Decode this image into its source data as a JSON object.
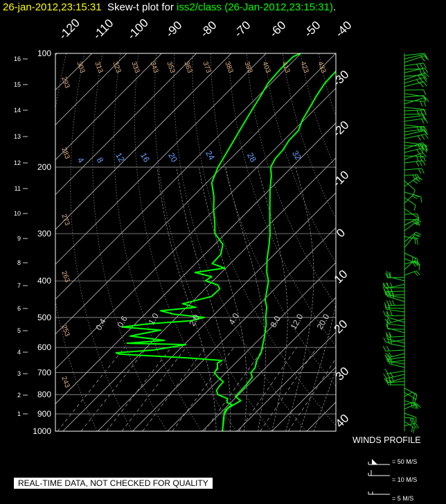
{
  "title": {
    "timestamp": "26-jan-2012,23:15:31",
    "prefix": "Skew-t plot for",
    "source": "iss2/class (26-Jan-2012,23:15:31)",
    "suffix": "."
  },
  "note": "REAL-TIME DATA, NOT CHECKED FOR QUALITY",
  "winds": {
    "title": "WINDS PROFILE",
    "legend": [
      "= 50 M/S",
      "= 10 M/S",
      "= 5 M/S"
    ]
  },
  "colors": {
    "sounding": "#00ff00",
    "timestamp": "#ffff00",
    "text": "#ffffff",
    "background": "#000000"
  },
  "chart_data": {
    "type": "line",
    "pressure_levels": [
      "100",
      "200",
      "300",
      "400",
      "500",
      "600",
      "700",
      "800",
      "900",
      "1000"
    ],
    "height_km": [
      "1",
      "2",
      "3",
      "4",
      "5",
      "6",
      "7",
      "8",
      "9",
      "10",
      "11",
      "12",
      "13",
      "14",
      "15",
      "16"
    ],
    "isotherms_top": [
      "-120",
      "-110",
      "-100",
      "-90",
      "-80",
      "-70",
      "-60",
      "-50",
      "-40"
    ],
    "isotherms_right": [
      "-30",
      "-20",
      "-10",
      "0",
      "10",
      "20",
      "30",
      "40"
    ],
    "dry_adiabats": [
      "303",
      "313",
      "323",
      "333",
      "343",
      "353",
      "363",
      "373",
      "383",
      "393",
      "403",
      "413",
      "423",
      "433",
      "293",
      "283",
      "273",
      "263",
      "253",
      "243"
    ],
    "moist_adiabats": [
      "4",
      "8",
      "12",
      "16",
      "20",
      "24",
      "28",
      "32"
    ],
    "mixing_ratios": [
      "0.4",
      "0.6",
      "1.0",
      "2.0",
      "4.0",
      "8.0",
      "12.0",
      "20.0"
    ],
    "ylim": [
      1000,
      100
    ],
    "series": [
      {
        "id": "temperature",
        "points": [
          [
            1000,
            5.8
          ],
          [
            970,
            4.5
          ],
          [
            950,
            3.6
          ],
          [
            920,
            2.2
          ],
          [
            900,
            1.4
          ],
          [
            870,
            0.8
          ],
          [
            850,
            1.5
          ],
          [
            830,
            2.3
          ],
          [
            810,
            -0.4
          ],
          [
            790,
            -0.5
          ],
          [
            770,
            -0.5
          ],
          [
            750,
            -0.7
          ],
          [
            720,
            -1.1
          ],
          [
            700,
            -2.8
          ],
          [
            680,
            -3.0
          ],
          [
            650,
            -4.6
          ],
          [
            620,
            -5.6
          ],
          [
            600,
            -6.8
          ],
          [
            560,
            -9.4
          ],
          [
            520,
            -12.4
          ],
          [
            500,
            -14.4
          ],
          [
            470,
            -17.0
          ],
          [
            450,
            -19.5
          ],
          [
            420,
            -22.2
          ],
          [
            400,
            -24.1
          ],
          [
            380,
            -27.0
          ],
          [
            350,
            -30.8
          ],
          [
            320,
            -34.4
          ],
          [
            300,
            -37.2
          ],
          [
            280,
            -40.5
          ],
          [
            250,
            -45.8
          ],
          [
            230,
            -49.7
          ],
          [
            210,
            -53.6
          ],
          [
            200,
            -56.1
          ],
          [
            190,
            -57.2
          ],
          [
            180,
            -57.5
          ],
          [
            170,
            -58.5
          ],
          [
            160,
            -58.6
          ],
          [
            150,
            -60.5
          ],
          [
            140,
            -61.8
          ],
          [
            130,
            -63.3
          ],
          [
            120,
            -64.6
          ],
          [
            110,
            -64.9
          ],
          [
            105,
            -64.8
          ],
          [
            100,
            -64.2
          ]
        ]
      },
      {
        "id": "dewpoint",
        "points": [
          [
            1000,
            5.8
          ],
          [
            960,
            4.1
          ],
          [
            930,
            2.8
          ],
          [
            900,
            1.3
          ],
          [
            880,
            0.6
          ],
          [
            850,
            0.9
          ],
          [
            840,
            -1.1
          ],
          [
            820,
            -2.1
          ],
          [
            800,
            -6.0
          ],
          [
            780,
            -7.6
          ],
          [
            760,
            -8.0
          ],
          [
            740,
            -8.1
          ],
          [
            720,
            -10.9
          ],
          [
            700,
            -13.3
          ],
          [
            680,
            -13.8
          ],
          [
            660,
            -15.2
          ],
          [
            650,
            -14.6
          ],
          [
            640,
            -24.9
          ],
          [
            630,
            -39.0
          ],
          [
            625,
            -45.9
          ],
          [
            620,
            -47.2
          ],
          [
            610,
            -37.5
          ],
          [
            600,
            -33.4
          ],
          [
            590,
            -29.6
          ],
          [
            585,
            -46.8
          ],
          [
            575,
            -36.9
          ],
          [
            560,
            -48.0
          ],
          [
            550,
            -44.6
          ],
          [
            540,
            -40.9
          ],
          [
            530,
            -52.9
          ],
          [
            520,
            -46.5
          ],
          [
            510,
            -34.9
          ],
          [
            500,
            -32.0
          ],
          [
            490,
            -41.7
          ],
          [
            480,
            -46.5
          ],
          [
            470,
            -37.4
          ],
          [
            460,
            -42.2
          ],
          [
            440,
            -36.0
          ],
          [
            420,
            -35.8
          ],
          [
            410,
            -37.5
          ],
          [
            400,
            -42.2
          ],
          [
            390,
            -41.6
          ],
          [
            380,
            -47.6
          ],
          [
            370,
            -40.4
          ],
          [
            360,
            -45.2
          ],
          [
            340,
            -45.4
          ],
          [
            320,
            -47.7
          ],
          [
            300,
            -53.0
          ],
          [
            280,
            -56.3
          ],
          [
            260,
            -60.1
          ],
          [
            240,
            -63.8
          ],
          [
            220,
            -68.5
          ],
          [
            200,
            -71.2
          ],
          [
            180,
            -73.2
          ],
          [
            160,
            -75.5
          ],
          [
            140,
            -78.0
          ],
          [
            130,
            -79.3
          ],
          [
            120,
            -80.9
          ],
          [
            110,
            -81.4
          ],
          [
            102,
            -81.3
          ],
          [
            100,
            -80.1
          ]
        ]
      }
    ]
  }
}
